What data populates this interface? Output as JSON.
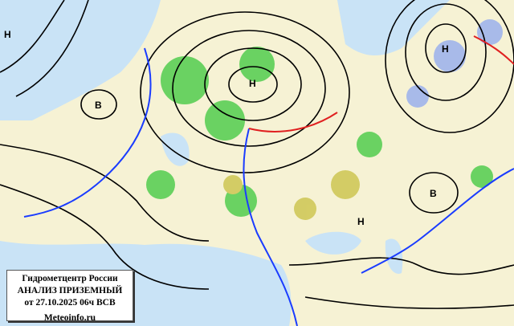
{
  "info_box": {
    "org": "Гидрометцентр России",
    "product": "АНАЛИЗ ПРИЗЕМНЫЙ",
    "valid": "от 27.10.2025 06ч ВСВ",
    "site": "Meteoinfo.ru"
  },
  "pressure_centers": [
    {
      "type": "low",
      "label": "Н"
    },
    {
      "type": "high",
      "label": "В"
    },
    {
      "type": "low",
      "label": "Н"
    },
    {
      "type": "low",
      "label": "Н"
    },
    {
      "type": "high",
      "label": "В"
    },
    {
      "type": "low",
      "label": "Н"
    }
  ],
  "colors": {
    "land": "#f6f2d4",
    "sea": "#c9e3f6",
    "isobar": "#000000",
    "cold_front": "#1a3cff",
    "warm_front": "#e02020",
    "precip_rain": "#3cc83c",
    "precip_snow": "#8fa8f0",
    "fog": "#c8c040"
  }
}
